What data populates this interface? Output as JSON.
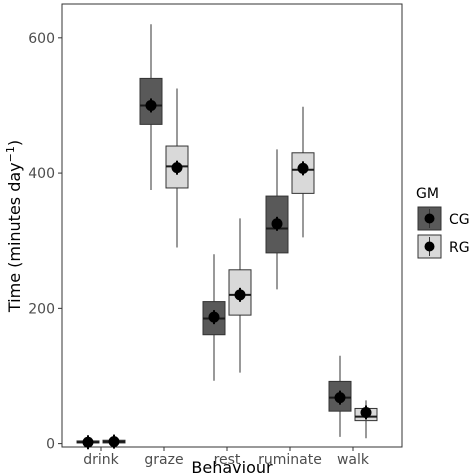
{
  "chart_data": {
    "type": "boxplot",
    "xlabel": "Behaviour",
    "ylabel": "Time (minutes day",
    "ylabel_superscript": "−1",
    "ylabel_close": ")",
    "ylim": [
      -5,
      650
    ],
    "yticks": [
      0,
      200,
      400,
      600
    ],
    "grid": false,
    "categories": [
      "drink",
      "graze",
      "rest",
      "ruminate",
      "walk"
    ],
    "legend": {
      "title": "GM",
      "placement": "right",
      "entries": [
        "CG",
        "RG"
      ]
    },
    "series": [
      {
        "name": "CG",
        "color": "#595959",
        "boxes": [
          {
            "category": "drink",
            "min": 0,
            "q1": 1,
            "median": 2,
            "q3": 4,
            "max": 6,
            "mean": 2
          },
          {
            "category": "graze",
            "min": 375,
            "q1": 472,
            "median": 500,
            "q3": 540,
            "max": 620,
            "mean": 500
          },
          {
            "category": "rest",
            "min": 93,
            "q1": 161,
            "median": 185,
            "q3": 210,
            "max": 280,
            "mean": 187
          },
          {
            "category": "ruminate",
            "min": 228,
            "q1": 282,
            "median": 318,
            "q3": 366,
            "max": 435,
            "mean": 325
          },
          {
            "category": "walk",
            "min": 10,
            "q1": 48,
            "median": 68,
            "q3": 92,
            "max": 130,
            "mean": 68
          }
        ]
      },
      {
        "name": "RG",
        "color": "#d9d9d9",
        "boxes": [
          {
            "category": "drink",
            "min": 0,
            "q1": 1,
            "median": 3,
            "q3": 5,
            "max": 7,
            "mean": 3
          },
          {
            "category": "graze",
            "min": 290,
            "q1": 378,
            "median": 410,
            "q3": 440,
            "max": 525,
            "mean": 408
          },
          {
            "category": "rest",
            "min": 105,
            "q1": 190,
            "median": 220,
            "q3": 257,
            "max": 333,
            "mean": 220
          },
          {
            "category": "ruminate",
            "min": 305,
            "q1": 370,
            "median": 405,
            "q3": 430,
            "max": 498,
            "mean": 407
          },
          {
            "category": "walk",
            "min": 8,
            "q1": 34,
            "median": 40,
            "q3": 52,
            "max": 64,
            "mean": 46
          }
        ]
      }
    ]
  }
}
